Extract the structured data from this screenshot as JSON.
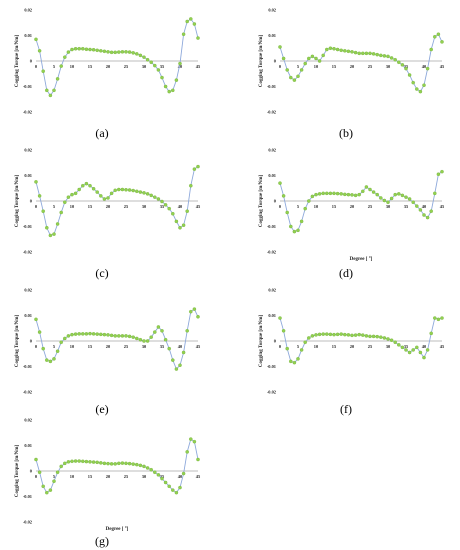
{
  "colors": {
    "line": "#8ea9db",
    "marker": "#92d050",
    "axis": "#7f7f7f",
    "text": "#222222"
  },
  "panels": [
    {
      "label": "(a)",
      "ylabel": "Cogging Torque [m/Nm]",
      "xlabel": "",
      "chart_data": {
        "type": "line",
        "ylim": [
          -0.02,
          0.02
        ],
        "xlim": [
          0,
          45
        ],
        "y_ticks": [
          "0.02",
          "0.01",
          "0",
          "-0.01",
          "-0.02"
        ],
        "x_ticks": [
          "0",
          "5",
          "10",
          "15",
          "20",
          "25",
          "30",
          "35",
          "40",
          "45"
        ],
        "x": [
          0,
          1,
          2,
          3,
          4,
          5,
          6,
          7,
          8,
          9,
          10,
          11,
          12,
          13,
          14,
          15,
          16,
          17,
          18,
          19,
          20,
          21,
          22,
          23,
          24,
          25,
          26,
          27,
          28,
          29,
          30,
          31,
          32,
          33,
          34,
          35,
          36,
          37,
          38,
          39,
          40,
          41,
          42,
          43,
          44,
          45
        ],
        "y": [
          0.0085,
          0.004,
          -0.004,
          -0.0115,
          -0.0135,
          -0.0115,
          -0.007,
          -0.002,
          0.0015,
          0.0035,
          0.0045,
          0.0048,
          0.0048,
          0.0048,
          0.0046,
          0.0045,
          0.0044,
          0.0042,
          0.004,
          0.0038,
          0.0036,
          0.0034,
          0.0034,
          0.0035,
          0.0036,
          0.0036,
          0.0035,
          0.0032,
          0.0028,
          0.0022,
          0.0015,
          0.0005,
          -0.0005,
          -0.0018,
          -0.0035,
          -0.0065,
          -0.01,
          -0.012,
          -0.0115,
          -0.0075,
          -0.001,
          0.0105,
          0.0155,
          0.0165,
          0.0145,
          0.009
        ]
      }
    },
    {
      "label": "(b)",
      "ylabel": "Cogging Torque [m/Nm]",
      "xlabel": "",
      "chart_data": {
        "type": "line",
        "ylim": [
          -0.02,
          0.02
        ],
        "xlim": [
          0,
          45
        ],
        "y_ticks": [
          "0.02",
          "0.01",
          "0",
          "-0.01",
          "-0.02"
        ],
        "x_ticks": [
          "0",
          "5",
          "10",
          "15",
          "20",
          "25",
          "30",
          "35",
          "40",
          "45"
        ],
        "x": [
          0,
          1,
          2,
          3,
          4,
          5,
          6,
          7,
          8,
          9,
          10,
          11,
          12,
          13,
          14,
          15,
          16,
          17,
          18,
          19,
          20,
          21,
          22,
          23,
          24,
          25,
          26,
          27,
          28,
          29,
          30,
          31,
          32,
          33,
          34,
          35,
          36,
          37,
          38,
          39,
          40,
          41,
          42,
          43,
          44,
          45
        ],
        "y": [
          0.0055,
          0.001,
          -0.0035,
          -0.0065,
          -0.0075,
          -0.006,
          -0.0035,
          -0.001,
          0.001,
          0.0018,
          0.001,
          0.0,
          0.0022,
          0.0045,
          0.005,
          0.0048,
          0.0045,
          0.0042,
          0.004,
          0.0038,
          0.0036,
          0.0033,
          0.003,
          0.003,
          0.003,
          0.003,
          0.0028,
          0.0025,
          0.0022,
          0.002,
          0.0018,
          0.0012,
          0.0005,
          -0.0005,
          -0.0015,
          -0.003,
          -0.0055,
          -0.0085,
          -0.011,
          -0.012,
          -0.0095,
          -0.003,
          0.0045,
          0.0095,
          0.0105,
          0.0075
        ]
      }
    },
    {
      "label": "(c)",
      "ylabel": "Cogging Torque [m/Nm]",
      "xlabel": "",
      "chart_data": {
        "type": "line",
        "ylim": [
          -0.02,
          0.02
        ],
        "xlim": [
          0,
          45
        ],
        "y_ticks": [
          "0.02",
          "0.01",
          "0",
          "-0.01",
          "-0.02"
        ],
        "x_ticks": [
          "0",
          "5",
          "10",
          "15",
          "20",
          "25",
          "30",
          "35",
          "40",
          "45"
        ],
        "x": [
          0,
          1,
          2,
          3,
          4,
          5,
          6,
          7,
          8,
          9,
          10,
          11,
          12,
          13,
          14,
          15,
          16,
          17,
          18,
          19,
          20,
          21,
          22,
          23,
          24,
          25,
          26,
          27,
          28,
          29,
          30,
          31,
          32,
          33,
          34,
          35,
          36,
          37,
          38,
          39,
          40,
          41,
          42,
          43,
          44,
          45
        ],
        "y": [
          0.0075,
          0.002,
          -0.004,
          -0.0105,
          -0.0135,
          -0.013,
          -0.009,
          -0.0045,
          -0.0005,
          0.0015,
          0.0025,
          0.003,
          0.0045,
          0.006,
          0.0068,
          0.006,
          0.0048,
          0.0035,
          0.002,
          0.0008,
          0.0012,
          0.003,
          0.0042,
          0.0045,
          0.0045,
          0.0044,
          0.0043,
          0.0041,
          0.0038,
          0.0035,
          0.0032,
          0.0028,
          0.0022,
          0.0015,
          0.0008,
          -0.0002,
          -0.0015,
          -0.003,
          -0.005,
          -0.008,
          -0.0105,
          -0.0095,
          -0.004,
          0.006,
          0.0125,
          0.0135
        ]
      }
    },
    {
      "label": "(d)",
      "ylabel": "Cogging Torque [m/Nm]",
      "xlabel": "Degree [   °]",
      "chart_data": {
        "type": "line",
        "ylim": [
          -0.02,
          0.02
        ],
        "xlim": [
          0,
          45
        ],
        "y_ticks": [
          "0.02",
          "0.01",
          "0",
          "-0.01",
          "-0.02"
        ],
        "x_ticks": [
          "0",
          "5",
          "10",
          "15",
          "20",
          "25",
          "30",
          "35",
          "40",
          "45"
        ],
        "x": [
          0,
          1,
          2,
          3,
          4,
          5,
          6,
          7,
          8,
          9,
          10,
          11,
          12,
          13,
          14,
          15,
          16,
          17,
          18,
          19,
          20,
          21,
          22,
          23,
          24,
          25,
          26,
          27,
          28,
          29,
          30,
          31,
          32,
          33,
          34,
          35,
          36,
          37,
          38,
          39,
          40,
          41,
          42,
          43,
          44,
          45
        ],
        "y": [
          0.007,
          0.002,
          -0.0045,
          -0.01,
          -0.012,
          -0.0115,
          -0.008,
          -0.003,
          0.0,
          0.0018,
          0.0025,
          0.0028,
          0.003,
          0.003,
          0.003,
          0.003,
          0.0029,
          0.0028,
          0.0026,
          0.0025,
          0.0024,
          0.0022,
          0.0025,
          0.0038,
          0.0055,
          0.0045,
          0.0035,
          0.0025,
          0.0012,
          0.0002,
          -0.0005,
          0.001,
          0.0025,
          0.0028,
          0.0022,
          0.0015,
          0.0008,
          -0.0005,
          -0.002,
          -0.0035,
          -0.0055,
          -0.0065,
          -0.004,
          0.003,
          0.0105,
          0.0115
        ]
      }
    },
    {
      "label": "(e)",
      "ylabel": "Cogging Torque [m/Nm]",
      "xlabel": "",
      "chart_data": {
        "type": "line",
        "ylim": [
          -0.02,
          0.02
        ],
        "xlim": [
          0,
          45
        ],
        "y_ticks": [
          "0.02",
          "0.01",
          "0",
          "-0.01",
          "-0.02"
        ],
        "x_ticks": [
          "0",
          "5",
          "10",
          "15",
          "20",
          "25",
          "30",
          "35",
          "40",
          "45"
        ],
        "x": [
          0,
          1,
          2,
          3,
          4,
          5,
          6,
          7,
          8,
          9,
          10,
          11,
          12,
          13,
          14,
          15,
          16,
          17,
          18,
          19,
          20,
          21,
          22,
          23,
          24,
          25,
          26,
          27,
          28,
          29,
          30,
          31,
          32,
          33,
          34,
          35,
          36,
          37,
          38,
          39,
          40,
          41,
          42,
          43,
          44,
          45
        ],
        "y": [
          0.0085,
          0.0035,
          -0.003,
          -0.0075,
          -0.008,
          -0.007,
          -0.004,
          -0.0005,
          0.001,
          0.002,
          0.0025,
          0.0027,
          0.0028,
          0.0028,
          0.0028,
          0.0029,
          0.0028,
          0.0027,
          0.0026,
          0.0025,
          0.0024,
          0.0022,
          0.002,
          0.002,
          0.002,
          0.002,
          0.0018,
          0.0015,
          0.001,
          0.0005,
          0.0,
          0.0,
          0.0015,
          0.0035,
          0.0055,
          0.004,
          0.0005,
          -0.003,
          -0.0075,
          -0.011,
          -0.0095,
          -0.0045,
          0.004,
          0.0115,
          0.0125,
          0.0095
        ]
      }
    },
    {
      "label": "(f)",
      "ylabel": "Cogging Torque [m/Nm]",
      "xlabel": "",
      "chart_data": {
        "type": "line",
        "ylim": [
          -0.02,
          0.02
        ],
        "xlim": [
          0,
          45
        ],
        "y_ticks": [
          "0.02",
          "0.01",
          "0",
          "-0.01",
          "-0.02"
        ],
        "x_ticks": [
          "0",
          "5",
          "10",
          "15",
          "20",
          "25",
          "30",
          "35",
          "40",
          "45"
        ],
        "x": [
          0,
          1,
          2,
          3,
          4,
          5,
          6,
          7,
          8,
          9,
          10,
          11,
          12,
          13,
          14,
          15,
          16,
          17,
          18,
          19,
          20,
          21,
          22,
          23,
          24,
          25,
          26,
          27,
          28,
          29,
          30,
          31,
          32,
          33,
          34,
          35,
          36,
          37,
          38,
          39,
          40,
          41,
          42,
          43,
          44,
          45
        ],
        "y": [
          0.009,
          0.004,
          -0.003,
          -0.008,
          -0.0085,
          -0.007,
          -0.0035,
          -0.0005,
          0.0012,
          0.002,
          0.0024,
          0.0026,
          0.0027,
          0.0027,
          0.0026,
          0.0025,
          0.0026,
          0.0027,
          0.0025,
          0.0024,
          0.0022,
          0.0023,
          0.0025,
          0.0023,
          0.002,
          0.0018,
          0.0018,
          0.0017,
          0.0015,
          0.0012,
          0.0008,
          0.0003,
          -0.0005,
          -0.0015,
          -0.0025,
          -0.0035,
          -0.0045,
          -0.0035,
          -0.0025,
          -0.0045,
          -0.0065,
          -0.0035,
          0.003,
          0.009,
          0.0085,
          0.009
        ]
      }
    },
    {
      "label": "(g)",
      "ylabel": "Cogging Torque [m/Nm]",
      "xlabel": "Degree [   °]",
      "chart_data": {
        "type": "line",
        "ylim": [
          -0.02,
          0.02
        ],
        "xlim": [
          0,
          45
        ],
        "y_ticks": [
          "0.02",
          "0.01",
          "0",
          "-0.01",
          "-0.02"
        ],
        "x_ticks": [
          "0",
          "5",
          "10",
          "15",
          "20",
          "25",
          "30",
          "35",
          "40",
          "45"
        ],
        "x": [
          0,
          1,
          2,
          3,
          4,
          5,
          6,
          7,
          8,
          9,
          10,
          11,
          12,
          13,
          14,
          15,
          16,
          17,
          18,
          19,
          20,
          21,
          22,
          23,
          24,
          25,
          26,
          27,
          28,
          29,
          30,
          31,
          32,
          33,
          34,
          35,
          36,
          37,
          38,
          39,
          40,
          41,
          42,
          43,
          44,
          45
        ],
        "y": [
          0.0045,
          -0.0005,
          -0.006,
          -0.0085,
          -0.0075,
          -0.004,
          -0.0005,
          0.0018,
          0.003,
          0.0036,
          0.0038,
          0.0039,
          0.0039,
          0.0038,
          0.0037,
          0.0036,
          0.0035,
          0.0034,
          0.0032,
          0.003,
          0.0029,
          0.0028,
          0.0028,
          0.003,
          0.0031,
          0.003,
          0.0029,
          0.0027,
          0.0025,
          0.0022,
          0.0018,
          0.0012,
          0.0005,
          -0.0005,
          -0.0015,
          -0.003,
          -0.0045,
          -0.006,
          -0.0075,
          -0.0085,
          -0.0065,
          -0.001,
          0.0075,
          0.0125,
          0.0115,
          0.0045
        ]
      }
    }
  ]
}
